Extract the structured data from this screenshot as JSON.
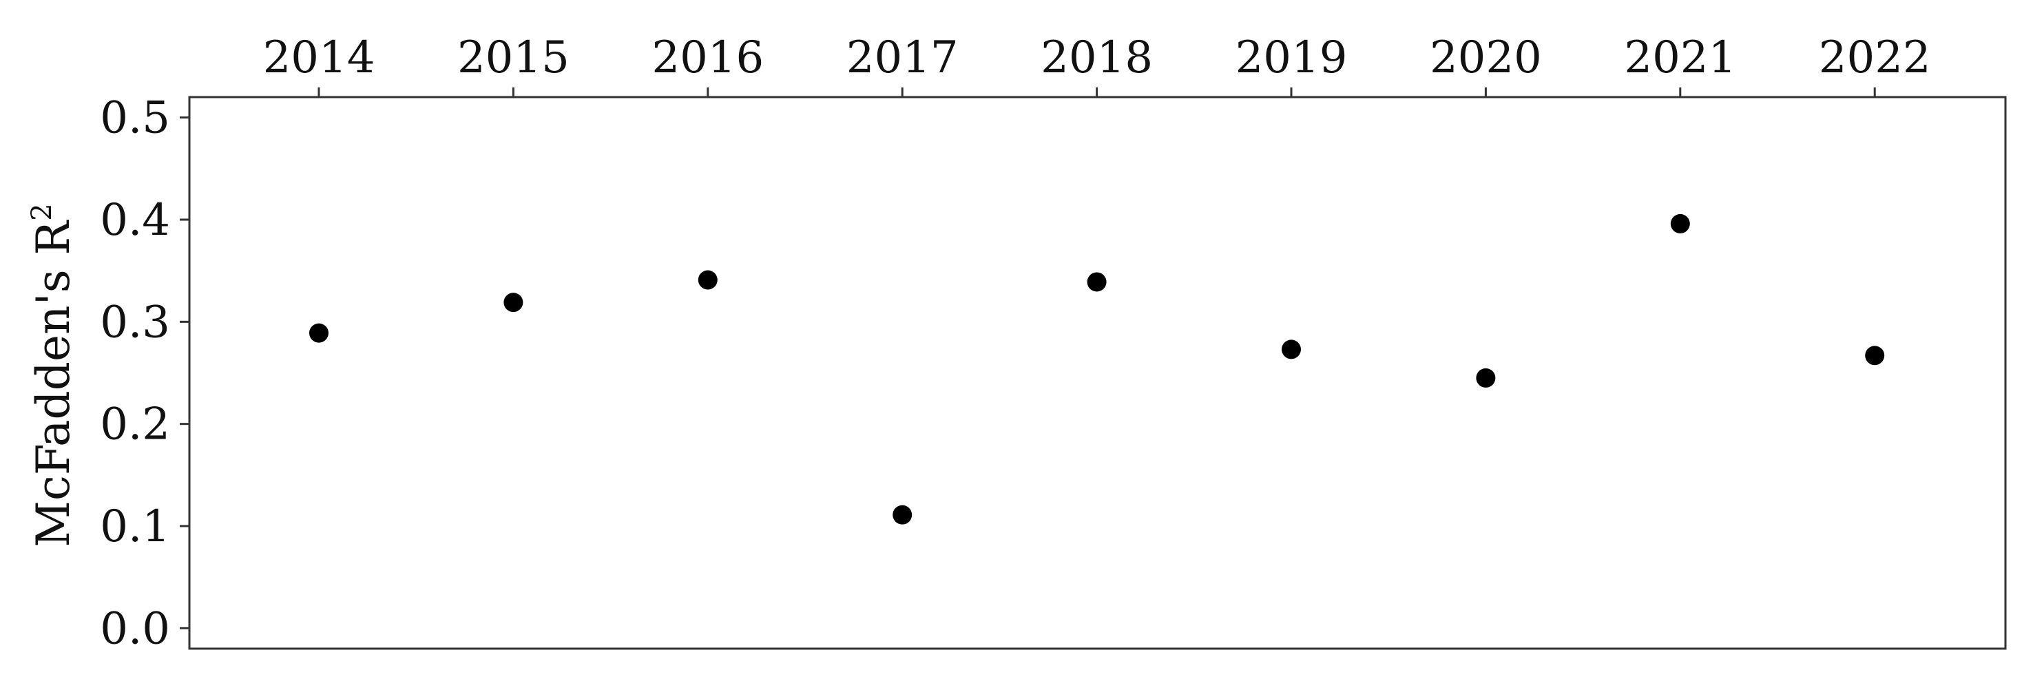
{
  "chart_data": {
    "type": "scatter",
    "title": "",
    "xlabel": "",
    "ylabel": "McFadden's R",
    "ylabel_superscript": "2",
    "x": [
      "2014",
      "2015",
      "2016",
      "2017",
      "2018",
      "2019",
      "2020",
      "2021",
      "2022"
    ],
    "y": [
      0.289,
      0.319,
      0.341,
      0.111,
      0.339,
      0.273,
      0.245,
      0.396,
      0.267
    ],
    "ylim": [
      -0.02,
      0.52
    ],
    "y_ticks": [
      0.0,
      0.1,
      0.2,
      0.3,
      0.4,
      0.5
    ],
    "y_tick_labels": [
      "0.0",
      "0.1",
      "0.2",
      "0.3",
      "0.4",
      "0.5"
    ],
    "x_axis_position": "top",
    "grid": false,
    "legend": null,
    "marker_color": "#000000",
    "axes_color": "#333333"
  }
}
